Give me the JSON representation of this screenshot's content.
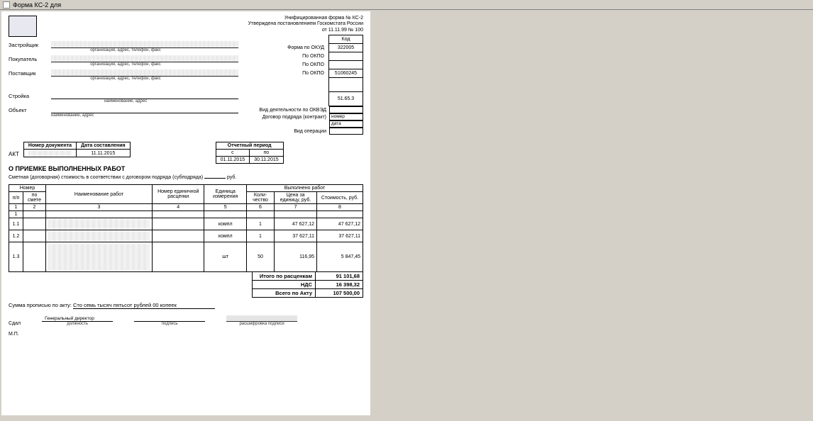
{
  "window": {
    "title": "Форма КС-2 для"
  },
  "header": {
    "line1": "Унифицированная форма № КС-2",
    "line2": "Утверждена постановлением  Госкомстата России",
    "line3": "от 11.11.99 № 100",
    "code_header": "Код"
  },
  "codes": {
    "okud_label": "Форма по ОКУД",
    "okud": "322005",
    "okpo1_label": "По ОКПО",
    "okpo1": "",
    "okpo2_label": "По ОКПО",
    "okpo2": "",
    "okpo3_label": "По ОКПО",
    "okpo3": "51060245",
    "empty1": "",
    "okved_val": "51.65.3",
    "okved_label": "Вид деятельности по ОКВЭД",
    "contract_label": "Договор подряда (контракт)",
    "contract_num_label": "номер",
    "contract_date_label": "дата",
    "operation_label": "Вид операции"
  },
  "parties": {
    "zastroyshik": "Застройщик",
    "pokupatel": "Покупатель",
    "postavshik": "Поставщик",
    "stroika": "Стройка",
    "obekt": "Объект",
    "sub_org": "организация, адрес, телефон, факс",
    "sub_name": "наименование, адрес"
  },
  "doc": {
    "akt": "АКТ",
    "num_header": "Номер документа",
    "date_header": "Дата составления",
    "num": "",
    "date": "11.11.2015",
    "title": "О ПРИЕМКЕ ВЫПОЛНЕННЫХ РАБОТ",
    "period_header": "Отчетный период",
    "period_from_h": "с",
    "period_to_h": "по",
    "period_from": "01.11.2015",
    "period_to": "30.11.2015",
    "smeta": "Сметная (договорная) стоимость в соответствии с договором подряда (субподряда)",
    "rub": "руб."
  },
  "table": {
    "headers": {
      "num": "Номер",
      "pp": "п/п",
      "posmete": "по смете",
      "name": "Наименование работ",
      "edras": "Номер единичной расценки",
      "unit": "Единица измерения",
      "done": "Выполнено работ",
      "qty": "Коли-чество",
      "price": "Цена за единицу, руб.",
      "cost": "Стоимость, руб."
    },
    "colnums": [
      "1",
      "2",
      "3",
      "4",
      "5",
      "6",
      "7",
      "8"
    ],
    "rows": [
      {
        "pp": "1",
        "sm": "",
        "name": "",
        "ed": "",
        "unit": "",
        "qty": "",
        "price": "",
        "cost": ""
      },
      {
        "pp": "1.1",
        "sm": "",
        "name": "",
        "ed": "",
        "unit": "компл",
        "qty": "1",
        "price": "47 627,12",
        "cost": "47 627,12"
      },
      {
        "pp": "1.2",
        "sm": "",
        "name": "",
        "ed": "",
        "unit": "компл",
        "qty": "1",
        "price": "37 627,11",
        "cost": "37 627,11"
      },
      {
        "pp": "1.3",
        "sm": "",
        "name": "",
        "ed": "",
        "unit": "шт",
        "qty": "50",
        "price": "116,95",
        "cost": "5 847,45"
      }
    ]
  },
  "totals": {
    "itogo_label": "Итого по расценкам",
    "itogo": "91 101,68",
    "nds_label": "НДС",
    "nds": "16 398,32",
    "vsego_label": "Всего по Акту",
    "vsego": "107 500,00"
  },
  "footer": {
    "sum_label": "Сумма прописью по акту:",
    "sum_text": "Сто семь тысяч пятьсот рублей 00 копеек",
    "sdal": "Сдал",
    "position": "Генеральный директор",
    "pos_cap": "должность",
    "sign_cap": "подпись",
    "rasch_cap": "расшифровка подписи",
    "mp": "М.П."
  }
}
